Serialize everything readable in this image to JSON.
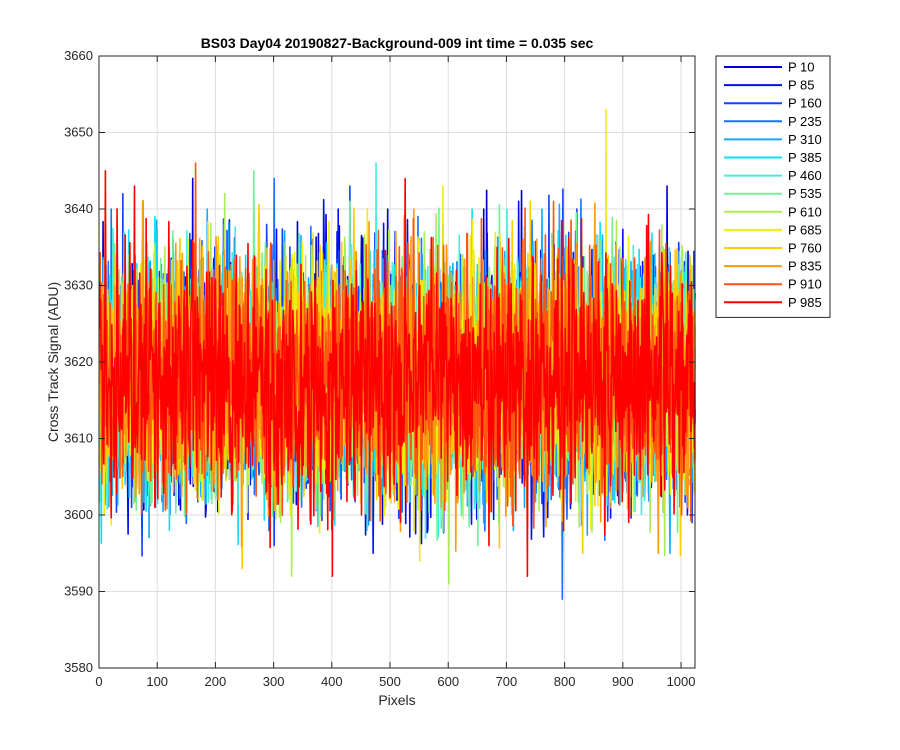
{
  "chart_data": {
    "type": "line",
    "title": "BS03 Day04 20190827-Background-009 int time = 0.035 sec",
    "xlabel": "Pixels",
    "ylabel": "Cross Track Signal (ADU)",
    "xlim": [
      0,
      1024
    ],
    "ylim": [
      3580,
      3660
    ],
    "xticks": [
      "0",
      "100",
      "200",
      "300",
      "400",
      "500",
      "600",
      "700",
      "800",
      "900",
      "1000"
    ],
    "yticks": [
      "3580",
      "3590",
      "3600",
      "3610",
      "3620",
      "3630",
      "3640",
      "3650",
      "3660"
    ],
    "grid": true,
    "legend_position": "outside-right-top",
    "noise_description": {
      "mean": 3618,
      "typical_range": [
        3603,
        3633
      ],
      "points_per_series": 1024
    },
    "series": [
      {
        "name": "P 10",
        "color": "#0000cc",
        "spikes": [
          [
            160,
            3644
          ],
          [
            495,
            3640
          ],
          [
            660,
            3640
          ],
          [
            975,
            3643
          ],
          [
            515,
            3601
          ]
        ]
      },
      {
        "name": "P 85",
        "color": "#0011ee",
        "spikes": [
          [
            410,
            3640
          ],
          [
            720,
            3641
          ],
          [
            1010,
            3600
          ],
          [
            470,
            3595
          ]
        ]
      },
      {
        "name": "P 160",
        "color": "#1144ff",
        "spikes": [
          [
            40,
            3642
          ],
          [
            430,
            3643
          ],
          [
            820,
            3640
          ],
          [
            300,
            3596
          ]
        ]
      },
      {
        "name": "P 235",
        "color": "#1177ff",
        "spikes": [
          [
            20,
            3640
          ],
          [
            300,
            3644
          ],
          [
            590,
            3638
          ],
          [
            795,
            3589
          ]
        ]
      },
      {
        "name": "P 310",
        "color": "#11aaff",
        "spikes": [
          [
            185,
            3640
          ],
          [
            760,
            3640
          ],
          [
            980,
            3595
          ]
        ]
      },
      {
        "name": "P 385",
        "color": "#11ddee",
        "spikes": [
          [
            95,
            3639
          ],
          [
            640,
            3640
          ],
          [
            120,
            3598
          ]
        ]
      },
      {
        "name": "P 460",
        "color": "#44eedd",
        "spikes": [
          [
            475,
            3646
          ],
          [
            700,
            3640
          ],
          [
            560,
            3597
          ]
        ]
      },
      {
        "name": "P 535",
        "color": "#77ee99",
        "spikes": [
          [
            265,
            3645
          ],
          [
            430,
            3641
          ],
          [
            650,
            3596
          ]
        ]
      },
      {
        "name": "P 610",
        "color": "#aaee55",
        "spikes": [
          [
            215,
            3642
          ],
          [
            330,
            3592
          ],
          [
            600,
            3591
          ]
        ]
      },
      {
        "name": "P 685",
        "color": "#eeee11",
        "spikes": [
          [
            870,
            3653
          ],
          [
            590,
            3643
          ],
          [
            550,
            3594
          ]
        ]
      },
      {
        "name": "P 760",
        "color": "#ffcc00",
        "spikes": [
          [
            245,
            3593
          ],
          [
            740,
            3641
          ],
          [
            830,
            3595
          ]
        ]
      },
      {
        "name": "P 835",
        "color": "#ff9911",
        "spikes": [
          [
            75,
            3641
          ],
          [
            540,
            3640
          ],
          [
            960,
            3595
          ]
        ]
      },
      {
        "name": "P 910",
        "color": "#ff5511",
        "spikes": [
          [
            165,
            3646
          ],
          [
            780,
            3641
          ],
          [
            1000,
            3600
          ]
        ]
      },
      {
        "name": "P 985",
        "color": "#ff0000",
        "spikes": [
          [
            10,
            3645
          ],
          [
            60,
            3643
          ],
          [
            525,
            3644
          ],
          [
            400,
            3592
          ],
          [
            735,
            3592
          ]
        ]
      }
    ]
  }
}
